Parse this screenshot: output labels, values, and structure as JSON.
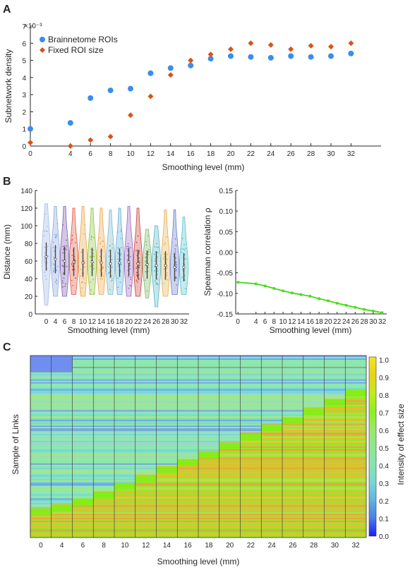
{
  "panels": {
    "a": "A",
    "b": "B",
    "c": "C"
  },
  "chart_data": [
    {
      "type": "scatter",
      "title": "",
      "xlabel": "Smoothing level (mm)",
      "ylabel": "Subnetwork density",
      "y_exponent": "×10⁻³",
      "xlim": [
        0,
        35
      ],
      "ylim": [
        0,
        7
      ],
      "xticks": [
        0,
        4,
        6,
        8,
        10,
        12,
        14,
        16,
        18,
        20,
        22,
        24,
        26,
        28,
        30,
        32
      ],
      "yticks": [
        0,
        1,
        2,
        3,
        4,
        5,
        6,
        7
      ],
      "legend_position": "top-left",
      "series": [
        {
          "name": "Brainnetome ROIs",
          "color": "#3b8ded",
          "marker": "circle",
          "x": [
            0,
            4,
            6,
            8,
            10,
            12,
            14,
            16,
            18,
            20,
            22,
            24,
            26,
            28,
            30,
            32
          ],
          "values": [
            1.0,
            1.35,
            2.8,
            3.25,
            3.35,
            4.25,
            4.55,
            4.7,
            5.1,
            5.25,
            5.2,
            5.15,
            5.25,
            5.2,
            5.25,
            5.4
          ]
        },
        {
          "name": "Fixed ROI size",
          "color": "#d95319",
          "marker": "diamond",
          "x": [
            0,
            4,
            6,
            8,
            10,
            12,
            14,
            16,
            18,
            20,
            22,
            24,
            26,
            28,
            30,
            32
          ],
          "values": [
            0.2,
            0.0,
            0.35,
            0.55,
            1.8,
            2.9,
            4.15,
            5.0,
            5.35,
            5.65,
            6.0,
            5.9,
            5.65,
            5.85,
            5.8,
            6.0
          ]
        }
      ]
    },
    {
      "type": "violin",
      "xlabel": "Smoothing level (mm)",
      "ylabel": "Distance (mm)",
      "ylim": [
        0,
        140
      ],
      "yticks": [
        0,
        20,
        40,
        60,
        80,
        100,
        120,
        140
      ],
      "categories": [
        "0",
        "4",
        "6",
        "8",
        "10",
        "12",
        "14",
        "16",
        "18",
        "20",
        "22",
        "24",
        "26",
        "28",
        "30",
        "32"
      ],
      "medians": [
        65,
        62,
        60,
        59,
        58,
        59,
        58,
        57,
        58,
        59,
        57,
        56,
        55,
        55,
        53,
        53
      ],
      "mins": [
        10,
        20,
        20,
        22,
        20,
        22,
        22,
        22,
        22,
        20,
        20,
        18,
        8,
        20,
        22,
        22
      ],
      "maxs": [
        125,
        122,
        122,
        120,
        122,
        120,
        120,
        118,
        120,
        122,
        120,
        96,
        100,
        118,
        118,
        110
      ],
      "colors": [
        "#9fb7e6",
        "#8aa6dd",
        "#7d5fb3",
        "#e05a46",
        "#e9a64a",
        "#8cc63f",
        "#f2a64c",
        "#7ab8c7",
        "#62b0d8",
        "#9c6abf",
        "#c9463c",
        "#7fb86b",
        "#57b8c6",
        "#e5b04c",
        "#6a7fcb",
        "#57c2c9"
      ]
    },
    {
      "type": "line",
      "xlabel": "Smoothing level (mm)",
      "ylabel": "Spearman correlation ρ",
      "ylim": [
        -0.15,
        0.15
      ],
      "yticks": [
        -0.15,
        -0.1,
        -0.05,
        0,
        0.05,
        0.1,
        0.15
      ],
      "ytick_labels": [
        "-0.15",
        "-0.10",
        "-0.05",
        "0.00",
        "0.05",
        "0.10",
        "0.15"
      ],
      "xticks": [
        0,
        4,
        6,
        8,
        10,
        12,
        14,
        16,
        18,
        20,
        22,
        24,
        26,
        28,
        30,
        32
      ],
      "color": "#4ddb1f",
      "x": [
        0,
        4,
        6,
        8,
        10,
        12,
        14,
        16,
        18,
        20,
        22,
        24,
        26,
        28,
        30,
        32
      ],
      "values": [
        -0.073,
        -0.077,
        -0.082,
        -0.088,
        -0.094,
        -0.099,
        -0.103,
        -0.107,
        -0.113,
        -0.118,
        -0.124,
        -0.129,
        -0.134,
        -0.139,
        -0.143,
        -0.147
      ]
    },
    {
      "type": "heatmap",
      "xlabel": "Smoothing level (mm)",
      "ylabel": "Sample of Links",
      "categories": [
        "0",
        "4",
        "6",
        "8",
        "10",
        "12",
        "14",
        "16",
        "18",
        "20",
        "22",
        "24",
        "26",
        "28",
        "30",
        "32"
      ],
      "colorbar_label": "Intensity of effect size",
      "colorbar_ticks": [
        "0.0",
        "0.1",
        "0.2",
        "0.3",
        "0.4",
        "0.5",
        "0.6",
        "0.7",
        "0.8",
        "0.9",
        "1.0"
      ],
      "colormap": [
        "#1a1aff",
        "#4a7de8",
        "#5fb3e3",
        "#74d9d6",
        "#86e5b3",
        "#8fe88f",
        "#9be86a",
        "#8cf01e",
        "#c4ea1a",
        "#e8d21a",
        "#f5e51a"
      ],
      "green_band_top_fraction": [
        0.84,
        0.82,
        0.79,
        0.75,
        0.7,
        0.66,
        0.61,
        0.57,
        0.53,
        0.48,
        0.43,
        0.38,
        0.34,
        0.29,
        0.24,
        0.19
      ]
    }
  ]
}
